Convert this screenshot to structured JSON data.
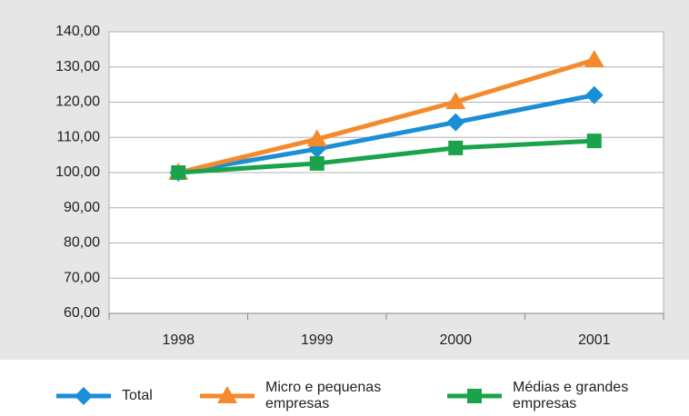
{
  "chart_data": {
    "type": "line",
    "categories": [
      "1998",
      "1999",
      "2000",
      "2001"
    ],
    "series": [
      {
        "name": "Total",
        "color": "#1a8fd6",
        "marker": "diamond",
        "values": [
          100,
          106.7,
          114.3,
          122
        ]
      },
      {
        "name": "Micro e pequenas empresas",
        "color": "#f58a2c",
        "marker": "triangle",
        "values": [
          100,
          109.5,
          120.1,
          132
        ]
      },
      {
        "name": "Médias e grandes empresas",
        "color": "#1aa34a",
        "marker": "square",
        "values": [
          100,
          102.6,
          107,
          109
        ]
      }
    ],
    "ylim": [
      60,
      140
    ],
    "yticks": [
      {
        "value": 60,
        "label": "60,00"
      },
      {
        "value": 70,
        "label": "70,00"
      },
      {
        "value": 80,
        "label": "80,00"
      },
      {
        "value": 90,
        "label": "90,00"
      },
      {
        "value": 100,
        "label": "100,00"
      },
      {
        "value": 110,
        "label": "110,00"
      },
      {
        "value": 120,
        "label": "120,00"
      },
      {
        "value": 130,
        "label": "130,00"
      },
      {
        "value": 140,
        "label": "140,00"
      }
    ],
    "grid": true,
    "legend": "bottom"
  }
}
